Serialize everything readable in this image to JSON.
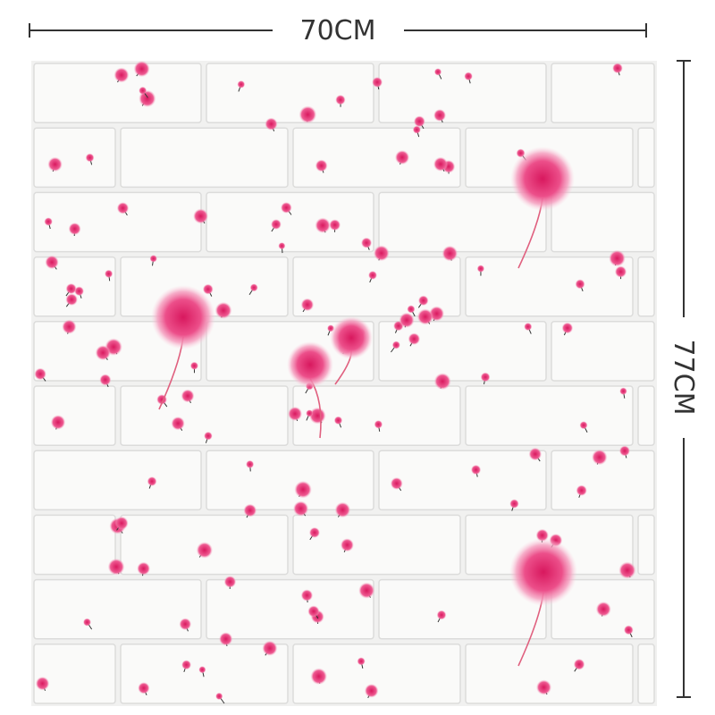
{
  "dimensions": {
    "width_label": "70CM",
    "height_label": "77CM"
  }
}
